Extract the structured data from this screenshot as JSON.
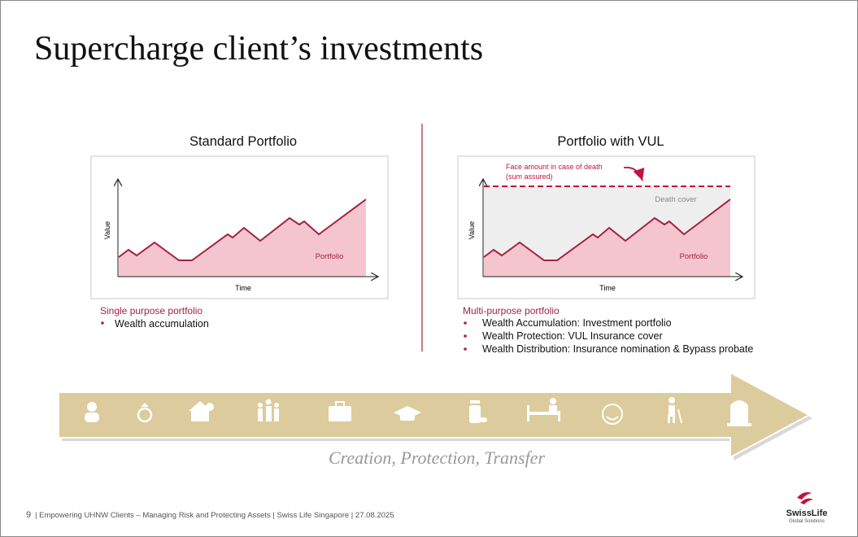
{
  "title": "Supercharge client’s investments",
  "panels": [
    {
      "title": "Standard Portfolio",
      "y_axis": "Value",
      "x_axis": "Time",
      "area_label": "Portfolio",
      "heading": "Single purpose portfolio",
      "bullets": [
        "Wealth accumulation"
      ]
    },
    {
      "title": "Portfolio with VUL",
      "y_axis": "Value",
      "x_axis": "Time",
      "area_label": "Portfolio",
      "cover_label": "Death cover",
      "annotation": [
        "Face amount in case of death",
        "(sum assured)"
      ],
      "heading": "Multi-purpose portfolio",
      "bullets": [
        "Wealth Accumulation: Investment portfolio",
        "Wealth Protection: VUL Insurance cover",
        "Wealth Distribution: Insurance nomination & Bypass probate"
      ]
    }
  ],
  "banner": {
    "caption": "Creation, Protection, Transfer"
  },
  "footer": {
    "page": "9",
    "text": "| Empowering UHNW Clients –  Managing Risk and Protecting Assets | Swiss Life Singapore | 27.08.2025"
  },
  "logo": {
    "name": "SwissLife",
    "tagline": "Global Solutions"
  }
}
